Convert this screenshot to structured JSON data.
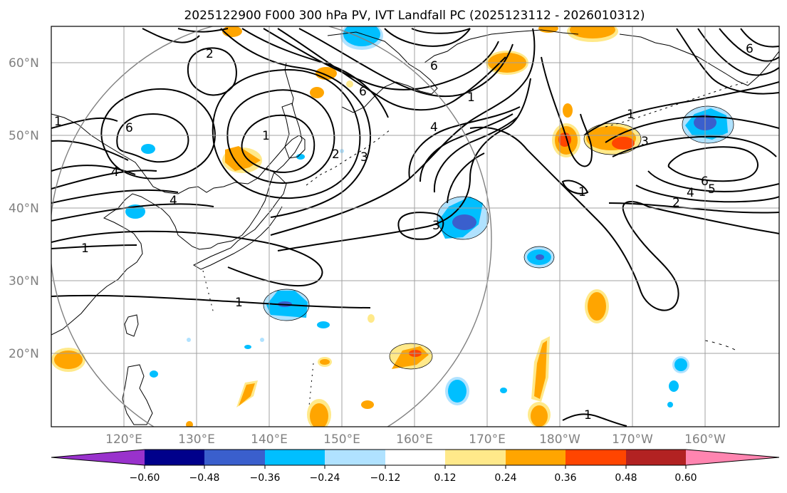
{
  "title": "2025122900 F000 300 hPa PV, IVT Landfall PC (2025123112 - 2026010312)",
  "map": {
    "lat_labels": [
      "60°N",
      "50°N",
      "40°N",
      "30°N",
      "20°N"
    ],
    "lon_labels": [
      "120°E",
      "130°E",
      "140°E",
      "150°E",
      "160°E",
      "170°E",
      "180°W",
      "170°W",
      "160°W"
    ],
    "grid": true,
    "grid_color": "#a0a0a0",
    "coastline_color": "#000000",
    "circle_color": "#808080"
  },
  "contour_labels": [
    "1",
    "2",
    "6",
    "4",
    "1",
    "6",
    "1",
    "4",
    "3",
    "2",
    "1",
    "3",
    "6",
    "4",
    "1",
    "3",
    "6",
    "5",
    "4",
    "2",
    "1",
    "6",
    "1",
    "1"
  ],
  "colorbar": {
    "ticks": [
      "−0.60",
      "−0.48",
      "−0.36",
      "−0.24",
      "−0.12",
      "0.12",
      "0.24",
      "0.36",
      "0.48",
      "0.60"
    ],
    "colors": [
      "#9932cc",
      "#00008b",
      "#3a5fcd",
      "#00bfff",
      "#b0e2ff",
      "#ffffff",
      "#ffe98a",
      "#ffa500",
      "#ff4500",
      "#b22222",
      "#ff85b0"
    ],
    "extend": "both"
  },
  "shading_colors": {
    "pos_light": "#ffe98a",
    "pos_mid": "#ffa500",
    "pos_strong": "#ff4500",
    "neg_light": "#b0e2ff",
    "neg_mid": "#00bfff",
    "neg_strong": "#3a5fcd"
  }
}
